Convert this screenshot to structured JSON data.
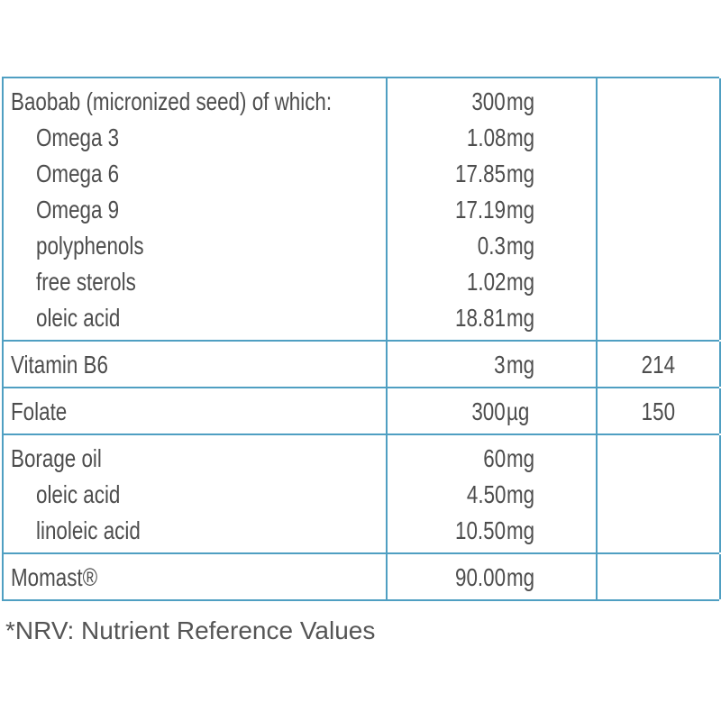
{
  "table": {
    "groups": [
      {
        "name": "Baobab (micronized seed) of which:",
        "amount": "300",
        "unit": "mg",
        "components": [
          {
            "name": "Omega 3",
            "amount": "1.08",
            "unit": "mg"
          },
          {
            "name": "Omega 6",
            "amount": "17.85",
            "unit": "mg"
          },
          {
            "name": "Omega 9",
            "amount": "17.19",
            "unit": "mg"
          },
          {
            "name": "polyphenols",
            "amount": "0.3",
            "unit": "mg"
          },
          {
            "name": "free sterols",
            "amount": "1.02",
            "unit": "mg"
          },
          {
            "name": "oleic acid",
            "amount": "18.81",
            "unit": "mg"
          }
        ]
      },
      {
        "name": "Vitamin B6",
        "amount": "3",
        "unit": "mg",
        "nrv": 214
      },
      {
        "name": "Folate",
        "amount": "300",
        "unit": "µg",
        "nrv": 150
      },
      {
        "name": "Borage oil",
        "amount": "60",
        "unit": "mg",
        "components": [
          {
            "name": "oleic acid",
            "amount": "4.50",
            "unit": "mg"
          },
          {
            "name": "linoleic acid",
            "amount": "10.50",
            "unit": "mg"
          }
        ]
      },
      {
        "name": "Momast®",
        "amount": "90.00",
        "unit": "mg"
      }
    ]
  },
  "footnote": "*NRV: Nutrient Reference Values"
}
